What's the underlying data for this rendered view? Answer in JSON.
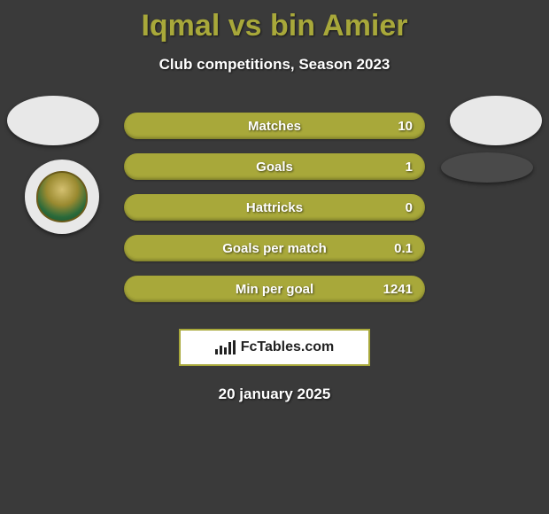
{
  "title": "Iqmal vs bin Amier",
  "subtitle": "Club competitions, Season 2023",
  "date": "20 january 2025",
  "colors": {
    "accent": "#a8a83a",
    "background": "#3a3a3a",
    "text": "#ffffff",
    "badge_bg": "#e8e8e8",
    "box_bg": "#ffffff",
    "box_text": "#222222"
  },
  "stats": [
    {
      "label": "Matches",
      "value": "10"
    },
    {
      "label": "Goals",
      "value": "1"
    },
    {
      "label": "Hattricks",
      "value": "0"
    },
    {
      "label": "Goals per match",
      "value": "0.1"
    },
    {
      "label": "Min per goal",
      "value": "1241"
    }
  ],
  "fctables": {
    "label": "FcTables.com",
    "icon": "bar-chart-icon"
  },
  "badges": {
    "left_player": "player-1-badge",
    "right_player": "player-2-badge",
    "team_logo": "team-crest"
  }
}
